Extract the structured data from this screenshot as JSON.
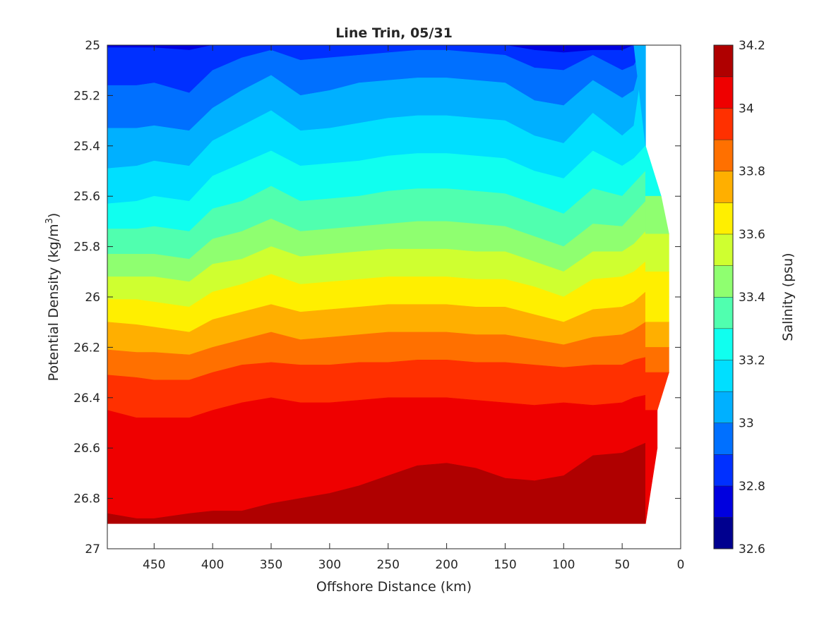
{
  "chart_data": {
    "type": "heatmap",
    "subtype": "filled-contour",
    "title": "Line Trin, 05/31",
    "xlabel": "Offshore Distance (km)",
    "ylabel_main": "Potential Density (kg/m",
    "ylabel_sup": "3",
    "ylabel_close": ")",
    "xlim": [
      490,
      0
    ],
    "ylim": [
      25,
      27
    ],
    "x_direction": "reversed",
    "y_direction": "reversed",
    "x_ticks": [
      450,
      400,
      350,
      300,
      250,
      200,
      150,
      100,
      50,
      0
    ],
    "x_tick_labels": [
      "450",
      "400",
      "350",
      "300",
      "250",
      "200",
      "150",
      "100",
      "50",
      "0"
    ],
    "y_ticks": [
      25,
      25.2,
      25.4,
      25.6,
      25.8,
      26,
      26.2,
      26.4,
      26.6,
      26.8,
      27
    ],
    "y_tick_labels": [
      "25",
      "25.2",
      "25.4",
      "25.6",
      "25.8",
      "26",
      "26.2",
      "26.4",
      "26.6",
      "26.8",
      "27"
    ],
    "colorbar": {
      "label": "Salinity (psu)",
      "range": [
        32.6,
        34.2
      ],
      "tick_values": [
        32.6,
        32.8,
        33,
        33.2,
        33.4,
        33.6,
        33.8,
        34,
        34.2
      ],
      "tick_labels": [
        "32.6",
        "32.8",
        "33",
        "33.2",
        "33.4",
        "33.6",
        "33.8",
        "34",
        "34.2"
      ],
      "levels": [
        32.6,
        32.7,
        32.8,
        32.9,
        33.0,
        33.1,
        33.2,
        33.3,
        33.4,
        33.5,
        33.6,
        33.7,
        33.8,
        33.9,
        34.0,
        34.1,
        34.2
      ],
      "colors": [
        "#00008f",
        "#0000df",
        "#0030ff",
        "#0070ff",
        "#00b0ff",
        "#00dfff",
        "#10ffef",
        "#50ffaf",
        "#8fff70",
        "#cfff30",
        "#ffef00",
        "#ffaf00",
        "#ff7000",
        "#ff3000",
        "#ef0000",
        "#af0000"
      ]
    },
    "distances_km": [
      490,
      465,
      450,
      420,
      400,
      375,
      350,
      325,
      300,
      275,
      250,
      225,
      200,
      175,
      150,
      125,
      100,
      75,
      50,
      40,
      30
    ],
    "contour_boundaries_density": {
      "32.8": [
        25.01,
        25.01,
        25.01,
        25.02,
        25.0,
        25.0,
        25.0,
        25.0,
        25.0,
        25.0,
        25.0,
        25.0,
        25.0,
        25.0,
        25.0,
        25.02,
        25.03,
        25.02,
        25.02,
        25.0,
        null
      ],
      "32.9": [
        25.16,
        25.16,
        25.15,
        25.19,
        25.1,
        25.05,
        25.02,
        25.06,
        25.05,
        25.04,
        25.03,
        25.02,
        25.02,
        25.03,
        25.04,
        25.09,
        25.1,
        25.04,
        25.1,
        25.08,
        null
      ],
      "33.0": [
        25.33,
        25.33,
        25.32,
        25.34,
        25.25,
        25.18,
        25.12,
        25.2,
        25.18,
        25.15,
        25.14,
        25.13,
        25.13,
        25.14,
        25.15,
        25.22,
        25.24,
        25.14,
        25.21,
        25.18,
        null
      ],
      "33.1": [
        25.49,
        25.48,
        25.46,
        25.48,
        25.38,
        25.32,
        25.26,
        25.34,
        25.33,
        25.31,
        25.29,
        25.28,
        25.28,
        25.29,
        25.3,
        25.36,
        25.39,
        25.27,
        25.36,
        25.32,
        null
      ],
      "33.2": [
        25.63,
        25.62,
        25.6,
        25.62,
        25.52,
        25.47,
        25.42,
        25.48,
        25.47,
        25.46,
        25.44,
        25.43,
        25.43,
        25.44,
        25.45,
        25.5,
        25.53,
        25.42,
        25.48,
        25.45,
        25.4
      ],
      "33.3": [
        25.73,
        25.73,
        25.72,
        25.74,
        25.65,
        25.62,
        25.56,
        25.62,
        25.61,
        25.6,
        25.58,
        25.57,
        25.57,
        25.58,
        25.59,
        25.63,
        25.67,
        25.57,
        25.6,
        25.55,
        25.5
      ],
      "33.4": [
        25.83,
        25.83,
        25.83,
        25.85,
        25.77,
        25.74,
        25.69,
        25.74,
        25.73,
        25.72,
        25.71,
        25.7,
        25.7,
        25.71,
        25.72,
        25.76,
        25.8,
        25.71,
        25.72,
        25.67,
        25.62
      ],
      "33.5": [
        25.92,
        25.92,
        25.92,
        25.94,
        25.87,
        25.85,
        25.8,
        25.84,
        25.83,
        25.82,
        25.81,
        25.81,
        25.81,
        25.82,
        25.82,
        25.86,
        25.9,
        25.82,
        25.82,
        25.79,
        25.74
      ],
      "33.6": [
        26.01,
        26.01,
        26.02,
        26.04,
        25.98,
        25.95,
        25.91,
        25.95,
        25.94,
        25.93,
        25.92,
        25.92,
        25.92,
        25.93,
        25.93,
        25.96,
        26.0,
        25.93,
        25.92,
        25.9,
        25.86
      ],
      "33.7": [
        26.1,
        26.11,
        26.12,
        26.14,
        26.09,
        26.06,
        26.03,
        26.06,
        26.05,
        26.04,
        26.03,
        26.03,
        26.03,
        26.04,
        26.04,
        26.07,
        26.1,
        26.05,
        26.04,
        26.02,
        25.98
      ],
      "33.8": [
        26.21,
        26.22,
        26.22,
        26.23,
        26.2,
        26.17,
        26.14,
        26.17,
        26.16,
        26.15,
        26.14,
        26.14,
        26.14,
        26.15,
        26.15,
        26.17,
        26.19,
        26.16,
        26.15,
        26.13,
        26.1
      ],
      "33.9": [
        26.31,
        26.32,
        26.33,
        26.33,
        26.3,
        26.27,
        26.26,
        26.27,
        26.27,
        26.26,
        26.26,
        26.25,
        26.25,
        26.26,
        26.26,
        26.27,
        26.28,
        26.27,
        26.27,
        26.25,
        26.24
      ],
      "34.0": [
        26.45,
        26.48,
        26.48,
        26.48,
        26.45,
        26.42,
        26.4,
        26.42,
        26.42,
        26.41,
        26.4,
        26.4,
        26.4,
        26.41,
        26.42,
        26.43,
        26.42,
        26.43,
        26.42,
        26.4,
        26.39
      ],
      "34.1": [
        26.86,
        26.88,
        26.88,
        26.86,
        26.85,
        26.85,
        26.82,
        26.8,
        26.78,
        26.75,
        26.71,
        26.67,
        26.66,
        26.68,
        26.72,
        26.73,
        26.71,
        26.63,
        26.62,
        26.6,
        26.58
      ],
      "34.2": [
        null,
        null,
        null,
        null,
        null,
        null,
        null,
        null,
        null,
        null,
        null,
        null,
        null,
        null,
        null,
        null,
        null,
        26.88,
        26.85,
        26.83,
        26.82
      ]
    },
    "data_max_density_by_distance": [
      26.9,
      26.9,
      26.9,
      26.9,
      26.9,
      26.9,
      26.9,
      26.9,
      26.9,
      26.9,
      26.9,
      26.9,
      26.9,
      26.9,
      26.9,
      26.9,
      26.9,
      26.9,
      26.9,
      26.9,
      26.9
    ],
    "data_boundary_nearshore": {
      "distances_km": [
        40,
        30,
        30,
        20,
        10,
        10,
        20,
        20,
        30,
        30
      ],
      "densities": [
        25.0,
        25.2,
        25.4,
        25.55,
        25.7,
        26.3,
        26.4,
        26.6,
        26.7,
        26.9
      ]
    },
    "grid": false,
    "legend": "none"
  }
}
